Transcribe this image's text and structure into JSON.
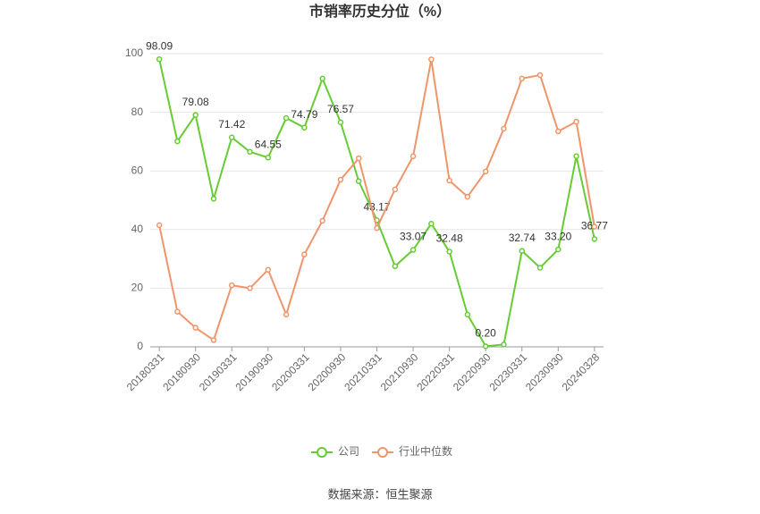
{
  "chart_data": {
    "type": "line",
    "title": "市销率历史分位（%）",
    "categories": [
      "20180331",
      null,
      "20180930",
      null,
      "20190331",
      null,
      "20190930",
      null,
      "20200331",
      null,
      "20200930",
      null,
      "20210331",
      null,
      "20210930",
      null,
      "20220331",
      null,
      "20220930",
      null,
      "20230331",
      null,
      "20230930",
      null,
      "20240328"
    ],
    "series": [
      {
        "name": "公司",
        "color": "#66cc33",
        "values": [
          98.09,
          70.1,
          79.08,
          50.5,
          71.42,
          66.5,
          64.55,
          78,
          74.79,
          91.5,
          76.57,
          56.5,
          43.17,
          27.5,
          33.07,
          42,
          32.48,
          11,
          0.2,
          0.8,
          32.74,
          27,
          33.2,
          65,
          36.77
        ],
        "value_labels": [
          "98.09",
          null,
          "79.08",
          null,
          "71.42",
          null,
          "64.55",
          null,
          "74.79",
          null,
          "76.57",
          null,
          "43.17",
          null,
          "33.07",
          null,
          "32.48",
          null,
          "0.20",
          null,
          "32.74",
          null,
          "33.20",
          null,
          "36.77"
        ]
      },
      {
        "name": "行业中位数",
        "color": "#f0956a",
        "values": [
          41.5,
          12,
          6.5,
          2.3,
          21,
          20,
          26.3,
          11,
          31.5,
          43,
          57,
          64.3,
          40.5,
          53.7,
          65,
          98,
          56.7,
          51.2,
          59.8,
          74.4,
          91.5,
          92.7,
          73.5,
          76.8,
          41
        ]
      }
    ],
    "ylim": [
      0,
      100
    ],
    "yticks": [
      0,
      20,
      40,
      60,
      80,
      100
    ],
    "grid": true,
    "legend": "bottom",
    "source": "数据来源：恒生聚源"
  }
}
